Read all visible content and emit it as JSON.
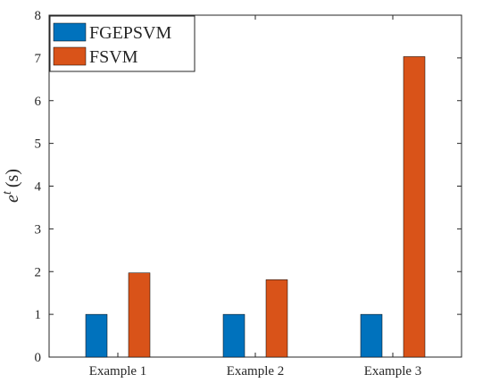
{
  "chart_data": {
    "type": "bar",
    "title": "",
    "xlabel": "",
    "ylabel": {
      "base": "e",
      "superscript": "t",
      "unit": "(s)"
    },
    "categories": [
      "Example 1",
      "Example 2",
      "Example 3"
    ],
    "series": [
      {
        "name": "FGEPSVM",
        "color": "#0072BD",
        "values": [
          1,
          1,
          1
        ]
      },
      {
        "name": "FSVM",
        "color": "#D95319",
        "values": [
          1.97,
          1.81,
          7.03
        ]
      }
    ],
    "ylim": [
      0,
      8
    ],
    "yticks": [
      "0",
      "1",
      "2",
      "3",
      "4",
      "5",
      "6",
      "7",
      "8"
    ],
    "grid": false,
    "legend_position": "top-left"
  }
}
